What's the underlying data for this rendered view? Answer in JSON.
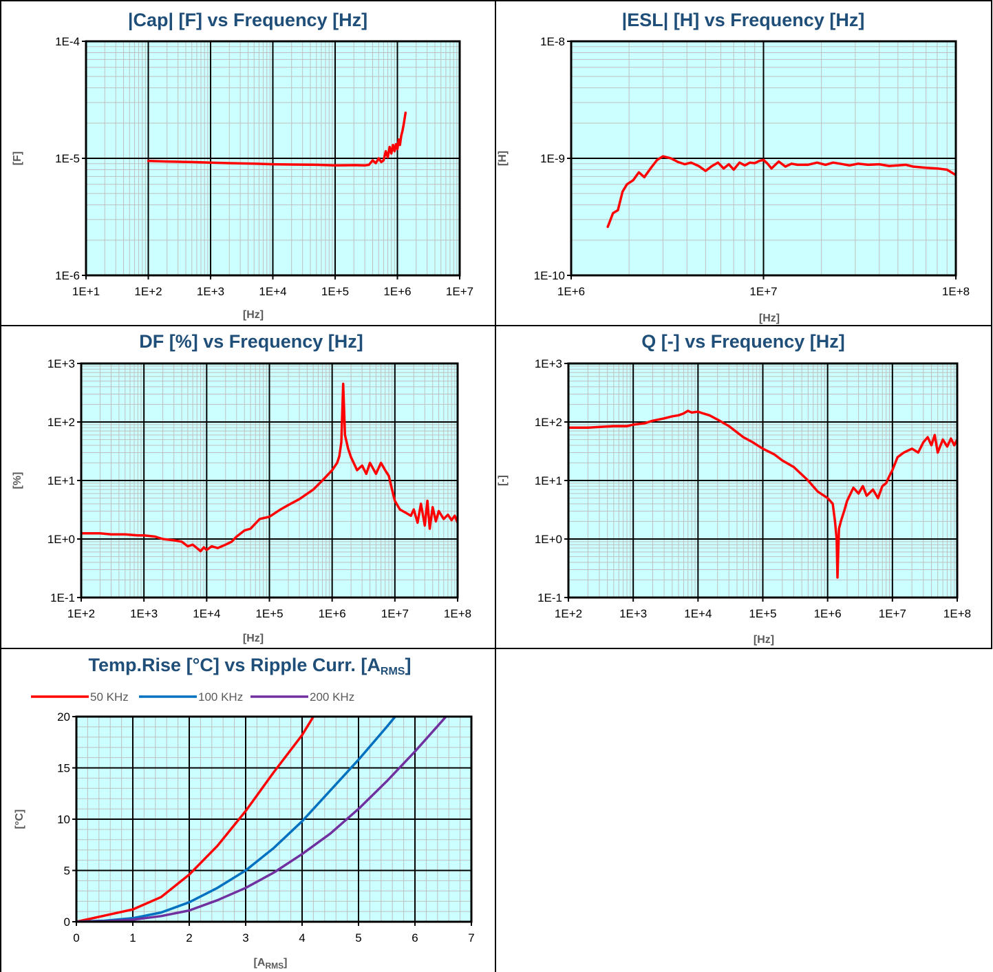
{
  "chart_data": [
    {
      "type": "line",
      "title": "|Cap| [F] vs Frequency [Hz]",
      "xlabel": "[Hz]",
      "ylabel": "[F]",
      "x_scale": "log",
      "y_scale": "log",
      "xlim": [
        10,
        10000000
      ],
      "ylim": [
        1e-06,
        0.0001
      ],
      "x_ticks": [
        "1E+1",
        "1E+2",
        "1E+3",
        "1E+4",
        "1E+5",
        "1E+6",
        "1E+7"
      ],
      "y_ticks": [
        "1E-6",
        "1E-5",
        "1E-4"
      ],
      "grid": true,
      "color": "#ff0000",
      "series": [
        {
          "x": [
            100,
            200,
            500,
            1000,
            2000,
            5000,
            10000,
            20000,
            50000,
            100000,
            200000,
            300000,
            350000,
            400000,
            450000,
            500000,
            550000,
            600000,
            650000,
            700000,
            750000,
            800000,
            850000,
            900000,
            950000,
            1000000,
            1050000,
            1100000,
            1150000,
            1200000,
            1250000,
            1300000,
            1350000
          ],
          "y": [
            9.5e-06,
            9.4e-06,
            9.3e-06,
            9.2e-06,
            9.1e-06,
            9e-06,
            8.9e-06,
            8.85e-06,
            8.8e-06,
            8.7e-06,
            8.75e-06,
            8.7e-06,
            8.8e-06,
            9.6e-06,
            9.1e-06,
            1e-05,
            9.3e-06,
            9.6e-06,
            1.15e-05,
            1.02e-05,
            1.25e-05,
            1.1e-05,
            1.3e-05,
            1.15e-05,
            1.32e-05,
            1.2e-05,
            1.45e-05,
            1.3e-05,
            1.55e-05,
            1.7e-05,
            1.9e-05,
            2.15e-05,
            2.45e-05
          ]
        }
      ]
    },
    {
      "type": "line",
      "title": "|ESL| [H] vs Frequency [Hz]",
      "xlabel": "[Hz]",
      "ylabel": "[H]",
      "x_scale": "log",
      "y_scale": "log",
      "xlim": [
        1000000,
        100000000
      ],
      "ylim": [
        1e-10,
        1e-08
      ],
      "x_ticks": [
        "1E+6",
        "1E+7",
        "1E+8"
      ],
      "y_ticks": [
        "1E-10",
        "1E-9",
        "1E-8"
      ],
      "grid": true,
      "color": "#ff0000",
      "series": [
        {
          "x": [
            1550000,
            1650000,
            1750000,
            1850000,
            1950000,
            2100000,
            2250000,
            2400000,
            2600000,
            2800000,
            3000000,
            3300000,
            3600000,
            3900000,
            4200000,
            4600000,
            5000000,
            5400000,
            5800000,
            6200000,
            6600000,
            7000000,
            7500000,
            8000000,
            8500000,
            9000000,
            9500000,
            10000000,
            10500000,
            11000000,
            12000000,
            13000000,
            14000000,
            15000000,
            17000000,
            19000000,
            21000000,
            23000000,
            25000000,
            28000000,
            31000000,
            35000000,
            40000000,
            45000000,
            50000000,
            55000000,
            60000000,
            70000000,
            80000000,
            90000000,
            100000000
          ],
          "y": [
            2.6e-10,
            3.4e-10,
            3.6e-10,
            5.2e-10,
            6e-10,
            6.5e-10,
            7.6e-10,
            6.9e-10,
            8.3e-10,
            9.7e-10,
            1.04e-09,
            1e-09,
            9.3e-10,
            8.9e-10,
            9.2e-10,
            8.6e-10,
            7.8e-10,
            8.6e-10,
            9.2e-10,
            8.2e-10,
            8.9e-10,
            8e-10,
            9.2e-10,
            8.7e-10,
            9.2e-10,
            9.1e-10,
            9.5e-10,
            9.7e-10,
            9e-10,
            8.2e-10,
            9.4e-10,
            8.5e-10,
            9e-10,
            8.8e-10,
            8.8e-10,
            9.2e-10,
            8.8e-10,
            9.2e-10,
            9e-10,
            8.7e-10,
            9e-10,
            8.8e-10,
            8.9e-10,
            8.6e-10,
            8.7e-10,
            8.8e-10,
            8.5e-10,
            8.3e-10,
            8.2e-10,
            8e-10,
            7.2e-10
          ]
        }
      ]
    },
    {
      "type": "line",
      "title": "DF [%] vs Frequency [Hz]",
      "xlabel": "[Hz]",
      "ylabel": "[%]",
      "x_scale": "log",
      "y_scale": "log",
      "xlim": [
        100,
        100000000
      ],
      "ylim": [
        0.1,
        1000
      ],
      "x_ticks": [
        "1E+2",
        "1E+3",
        "1E+4",
        "1E+5",
        "1E+6",
        "1E+7",
        "1E+8"
      ],
      "y_ticks": [
        "1E-1",
        "1E+0",
        "1E+1",
        "1E+2",
        "1E+3"
      ],
      "grid": true,
      "color": "#ff0000",
      "series": [
        {
          "x": [
            100,
            200,
            300,
            500,
            800,
            1000,
            1500,
            2000,
            3000,
            4000,
            5000,
            6000,
            7000,
            8000,
            9000,
            10000,
            12000,
            15000,
            20000,
            25000,
            30000,
            40000,
            50000,
            70000,
            100000,
            150000,
            200000,
            300000,
            500000,
            700000,
            1000000,
            1200000,
            1300000,
            1400000,
            1500000,
            1600000,
            1800000,
            2000000,
            2500000,
            3000000,
            3500000,
            4000000,
            5000000,
            6000000,
            7000000,
            8000000,
            9000000,
            10000000,
            12000000,
            15000000,
            18000000,
            20000000,
            23000000,
            26000000,
            30000000,
            33000000,
            36000000,
            40000000,
            45000000,
            50000000,
            60000000,
            70000000,
            80000000,
            90000000,
            100000000
          ],
          "y": [
            1.25,
            1.25,
            1.2,
            1.2,
            1.15,
            1.15,
            1.1,
            1.0,
            0.95,
            0.9,
            0.75,
            0.8,
            0.7,
            0.62,
            0.72,
            0.65,
            0.75,
            0.7,
            0.8,
            0.9,
            1.1,
            1.4,
            1.5,
            2.2,
            2.4,
            3.2,
            3.8,
            4.8,
            7.0,
            10.0,
            15.0,
            20.0,
            26.0,
            45.0,
            450.0,
            60.0,
            35.0,
            25.0,
            15.0,
            18.0,
            13.0,
            20.0,
            13.0,
            20.0,
            15.0,
            12.0,
            7.0,
            4.5,
            3.2,
            2.8,
            2.5,
            3.2,
            1.9,
            4.0,
            1.7,
            4.5,
            1.5,
            3.5,
            2.0,
            3.0,
            2.2,
            2.6,
            2.1,
            2.5,
            1.9
          ]
        }
      ]
    },
    {
      "type": "line",
      "title": "Q [-] vs Frequency [Hz]",
      "xlabel": "[Hz]",
      "ylabel": "[-]",
      "x_scale": "log",
      "y_scale": "log",
      "xlim": [
        100,
        100000000
      ],
      "ylim": [
        0.1,
        1000
      ],
      "x_ticks": [
        "1E+2",
        "1E+3",
        "1E+4",
        "1E+5",
        "1E+6",
        "1E+7",
        "1E+8"
      ],
      "y_ticks": [
        "1E-1",
        "1E+0",
        "1E+1",
        "1E+2",
        "1E+3"
      ],
      "grid": true,
      "color": "#ff0000",
      "series": [
        {
          "x": [
            100,
            200,
            300,
            500,
            800,
            1000,
            1500,
            2000,
            3000,
            4000,
            5000,
            6000,
            7000,
            8000,
            10000,
            12000,
            15000,
            20000,
            30000,
            50000,
            70000,
            100000,
            150000,
            200000,
            300000,
            500000,
            700000,
            1000000,
            1200000,
            1300000,
            1380000,
            1420000,
            1450000,
            1500000,
            1600000,
            1800000,
            2000000,
            2500000,
            3000000,
            3500000,
            4000000,
            5000000,
            6000000,
            7000000,
            8000000,
            9000000,
            10000000,
            12000000,
            15000000,
            20000000,
            25000000,
            30000000,
            35000000,
            40000000,
            45000000,
            50000000,
            60000000,
            70000000,
            80000000,
            90000000,
            100000000
          ],
          "y": [
            80,
            80,
            82,
            85,
            85,
            90,
            95,
            105,
            115,
            125,
            130,
            140,
            155,
            145,
            150,
            140,
            130,
            110,
            85,
            55,
            45,
            35,
            28,
            22,
            17,
            10,
            6.5,
            5.0,
            4.0,
            2.0,
            1.0,
            0.22,
            0.5,
            1.5,
            2.0,
            3.0,
            4.5,
            7.5,
            6.0,
            8.0,
            5.5,
            7.0,
            5.0,
            8.0,
            9.0,
            12.0,
            15.0,
            25.0,
            30.0,
            35.0,
            30.0,
            45.0,
            55.0,
            40.0,
            60.0,
            30.0,
            50.0,
            38.0,
            52.0,
            40.0,
            50.0
          ]
        }
      ]
    },
    {
      "type": "line",
      "title": "Temp.Rise [°C] vs Ripple Curr. [A",
      "title_subscript": "RMS",
      "title_suffix": "]",
      "xlabel": "[A",
      "xlabel_subscript": "RMS",
      "xlabel_suffix": "]",
      "ylabel": "[°C]",
      "x_scale": "linear",
      "y_scale": "linear",
      "xlim": [
        0,
        7
      ],
      "ylim": [
        0,
        20
      ],
      "x_ticks": [
        "0",
        "1",
        "2",
        "3",
        "4",
        "5",
        "6",
        "7"
      ],
      "y_ticks": [
        "0",
        "5",
        "10",
        "15",
        "20"
      ],
      "grid": true,
      "legend": "top",
      "series": [
        {
          "name": "50 KHz",
          "color": "#ff0000",
          "x": [
            0,
            0.5,
            1.0,
            1.5,
            2.0,
            2.5,
            3.0,
            3.5,
            4.0,
            4.2
          ],
          "y": [
            0,
            0.6,
            1.2,
            2.4,
            4.6,
            7.4,
            10.8,
            14.6,
            18.2,
            20
          ]
        },
        {
          "name": "100 KHz",
          "color": "#0070c0",
          "x": [
            0,
            0.5,
            1.0,
            1.5,
            2.0,
            2.5,
            3.0,
            3.5,
            4.0,
            4.5,
            5.0,
            5.5,
            5.65
          ],
          "y": [
            0,
            0.1,
            0.35,
            0.9,
            1.9,
            3.3,
            5.0,
            7.2,
            9.8,
            12.8,
            15.8,
            19.0,
            20
          ]
        },
        {
          "name": "200 KHz",
          "color": "#7030a0",
          "x": [
            0,
            0.5,
            1.0,
            1.5,
            2.0,
            2.5,
            3.0,
            3.5,
            4.0,
            4.5,
            5.0,
            5.5,
            6.0,
            6.55
          ],
          "y": [
            0,
            0.05,
            0.2,
            0.55,
            1.1,
            2.1,
            3.3,
            4.8,
            6.6,
            8.6,
            11.0,
            13.7,
            16.6,
            20
          ]
        }
      ]
    }
  ]
}
